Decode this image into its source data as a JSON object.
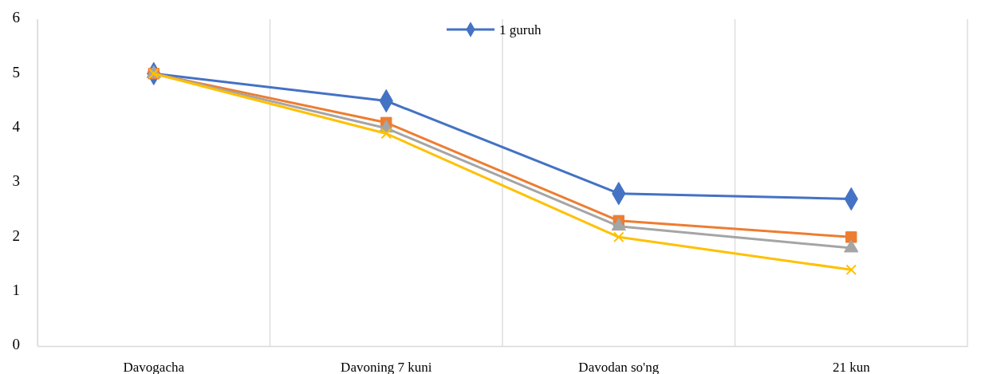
{
  "chart_data": {
    "type": "line",
    "categories": [
      "Davogacha",
      "Davoning 7 kuni",
      "Davodan so'ng",
      "21 kun"
    ],
    "series": [
      {
        "name": "1 guruh",
        "color": "#4472c4",
        "marker": "diamond",
        "values": [
          5,
          4.5,
          2.8,
          2.7
        ]
      },
      {
        "color": "#ed7d31",
        "marker": "square",
        "values": [
          5,
          4.1,
          2.3,
          2.0
        ]
      },
      {
        "color": "#a5a5a5",
        "marker": "triangle",
        "values": [
          5,
          4.0,
          2.2,
          1.8
        ]
      },
      {
        "color": "#ffc000",
        "marker": "cross",
        "values": [
          5,
          3.9,
          2.0,
          1.4
        ]
      }
    ],
    "ylim": [
      0,
      6
    ],
    "yticks": [
      0,
      1,
      2,
      3,
      4,
      5,
      6
    ],
    "grid": "x",
    "legend": "top",
    "line_style": "solid"
  }
}
